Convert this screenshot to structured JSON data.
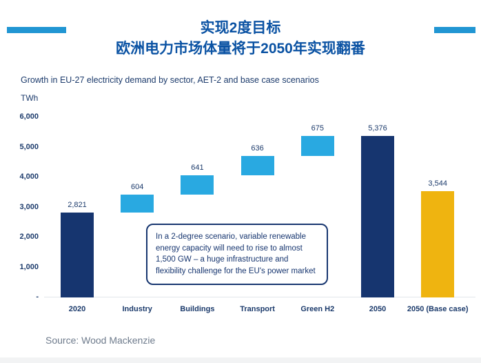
{
  "header": {
    "title_line1": "实现2度目标",
    "title_line2": "欧洲电力市场体量将于2050年实现翻番"
  },
  "subtitle": "Growth in EU-27 electricity demand by sector, AET-2 and base case scenarios",
  "chart_data": {
    "type": "bar",
    "subtype": "waterfall",
    "title": "Growth in EU-27 electricity demand by sector, AET-2 and base case scenarios",
    "xlabel": "",
    "ylabel": "TWh",
    "ylim": [
      0,
      6000
    ],
    "grid": false,
    "legend": "none",
    "categories": [
      "2020",
      "Industry",
      "Buildings",
      "Transport",
      "Green H2",
      "2050",
      "2050 (Base case)"
    ],
    "y_ticks": [
      "6,000",
      "5,000",
      "4,000",
      "3,000",
      "2,000",
      "1,000",
      "-"
    ],
    "y_tick_values": [
      6000,
      5000,
      4000,
      3000,
      2000,
      1000,
      0
    ],
    "bars": [
      {
        "label": "2020",
        "start": 0,
        "end": 2821,
        "value": 2821,
        "value_label": "2,821",
        "color": "navy"
      },
      {
        "label": "Industry",
        "start": 2821,
        "end": 3425,
        "value": 604,
        "value_label": "604",
        "color": "lightblue"
      },
      {
        "label": "Buildings",
        "start": 3425,
        "end": 4066,
        "value": 641,
        "value_label": "641",
        "color": "lightblue"
      },
      {
        "label": "Transport",
        "start": 4066,
        "end": 4702,
        "value": 636,
        "value_label": "636",
        "color": "lightblue"
      },
      {
        "label": "Green H2",
        "start": 4702,
        "end": 5377,
        "value": 675,
        "value_label": "675",
        "color": "lightblue"
      },
      {
        "label": "2050",
        "start": 0,
        "end": 5376,
        "value": 5376,
        "value_label": "5,376",
        "color": "navy"
      },
      {
        "label": "2050 (Base case)",
        "start": 0,
        "end": 3544,
        "value": 3544,
        "value_label": "3,544",
        "color": "gold"
      }
    ]
  },
  "annotation": {
    "text": "In a 2-degree scenario, variable renewable energy capacity will need to rise to almost 1,500 GW – a huge infrastructure and flexibility challenge for the EU's power market"
  },
  "source": "Source: Wood Mackenzie",
  "colors": {
    "navy": "#16356f",
    "lightblue": "#29a9e1",
    "gold": "#efb410",
    "title_blue": "#0a52a3",
    "accent_bar": "#2196d3",
    "axis_text": "#1b3a6b",
    "source_text": "#6e7b8c"
  }
}
